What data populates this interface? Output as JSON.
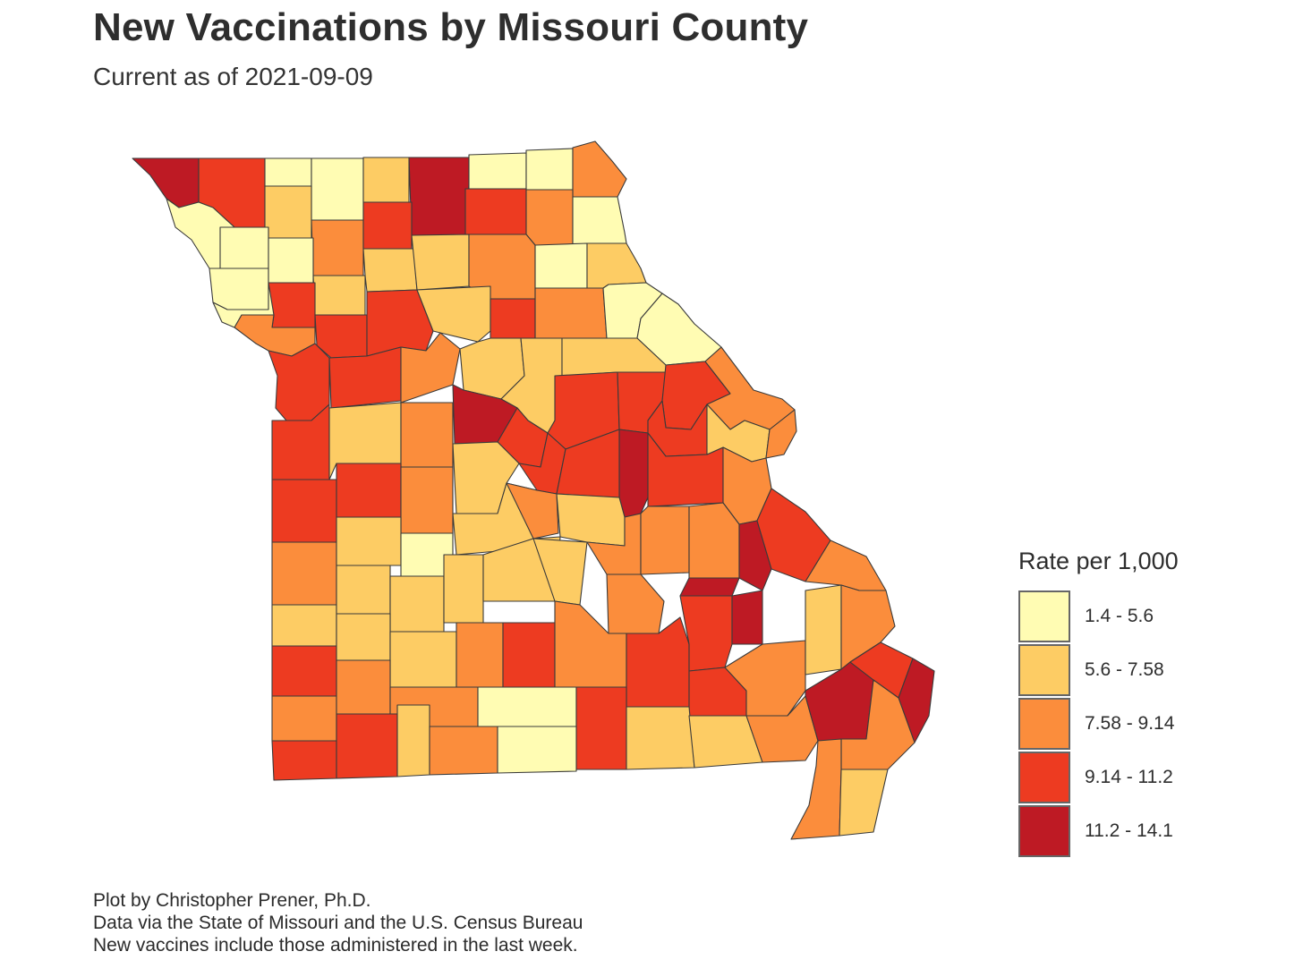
{
  "title": "New Vaccinations by Missouri County",
  "subtitle": "Current as of 2021-09-09",
  "legend": {
    "title": "Rate per 1,000",
    "items": [
      {
        "label": "1.4 - 5.6",
        "color": "#FFFCB3"
      },
      {
        "label": "5.6 - 7.58",
        "color": "#FDCC64"
      },
      {
        "label": "7.58 - 9.14",
        "color": "#FB8D3C"
      },
      {
        "label": "9.14 - 11.2",
        "color": "#ED3B21"
      },
      {
        "label": "11.2 - 14.1",
        "color": "#BE1A24"
      }
    ]
  },
  "caption": [
    "Plot by Christopher Prener, Ph.D.",
    "Data via the State of Missouri and the U.S. Census Bureau",
    "New vaccines include those administered in the last week."
  ],
  "map": {
    "state": "Missouri",
    "outline_color": "#3a3a3a",
    "counties_by_class": {
      "class_1": 14,
      "class_2": 25,
      "class_3": 36,
      "class_4": 30,
      "class_5": 10
    }
  }
}
